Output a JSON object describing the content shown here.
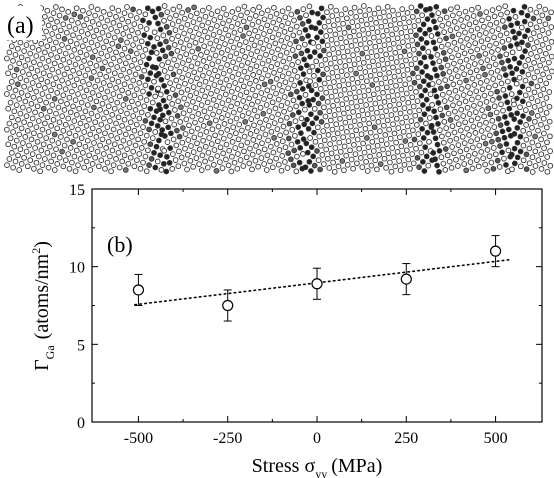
{
  "panel_a": {
    "label": "(a)"
  },
  "panel_b": {
    "label": "(b)"
  },
  "chart_data": {
    "type": "scatter",
    "xlabel_main": "Stress σ",
    "xlabel_sub": "yy",
    "xlabel_unit": "(MPa)",
    "ylabel_main": "Γ",
    "ylabel_sub": "Ga",
    "ylabel_unit_pre": "(atoms/nm",
    "ylabel_unit_sup": "2",
    "ylabel_unit_post": ")",
    "xlim": [
      -630,
      630
    ],
    "ylim": [
      0,
      15
    ],
    "xticks": [
      -500,
      -250,
      0,
      250,
      500
    ],
    "xtick_labels": [
      "-500",
      "-250",
      "0",
      "250",
      "500"
    ],
    "yticks": [
      0,
      5,
      10,
      15
    ],
    "ytick_labels": [
      "0",
      "5",
      "10",
      "15"
    ],
    "series": [
      {
        "marker": "open-circle",
        "x": [
          -500,
          -250,
          0,
          250,
          500
        ],
        "y": [
          8.5,
          7.5,
          8.9,
          9.2,
          11.0
        ],
        "err": [
          1.0,
          1.0,
          1.0,
          1.0,
          1.0
        ]
      }
    ],
    "fit_line": {
      "style": "dotted",
      "x": [
        -510,
        540
      ],
      "y": [
        7.55,
        10.45
      ]
    }
  }
}
